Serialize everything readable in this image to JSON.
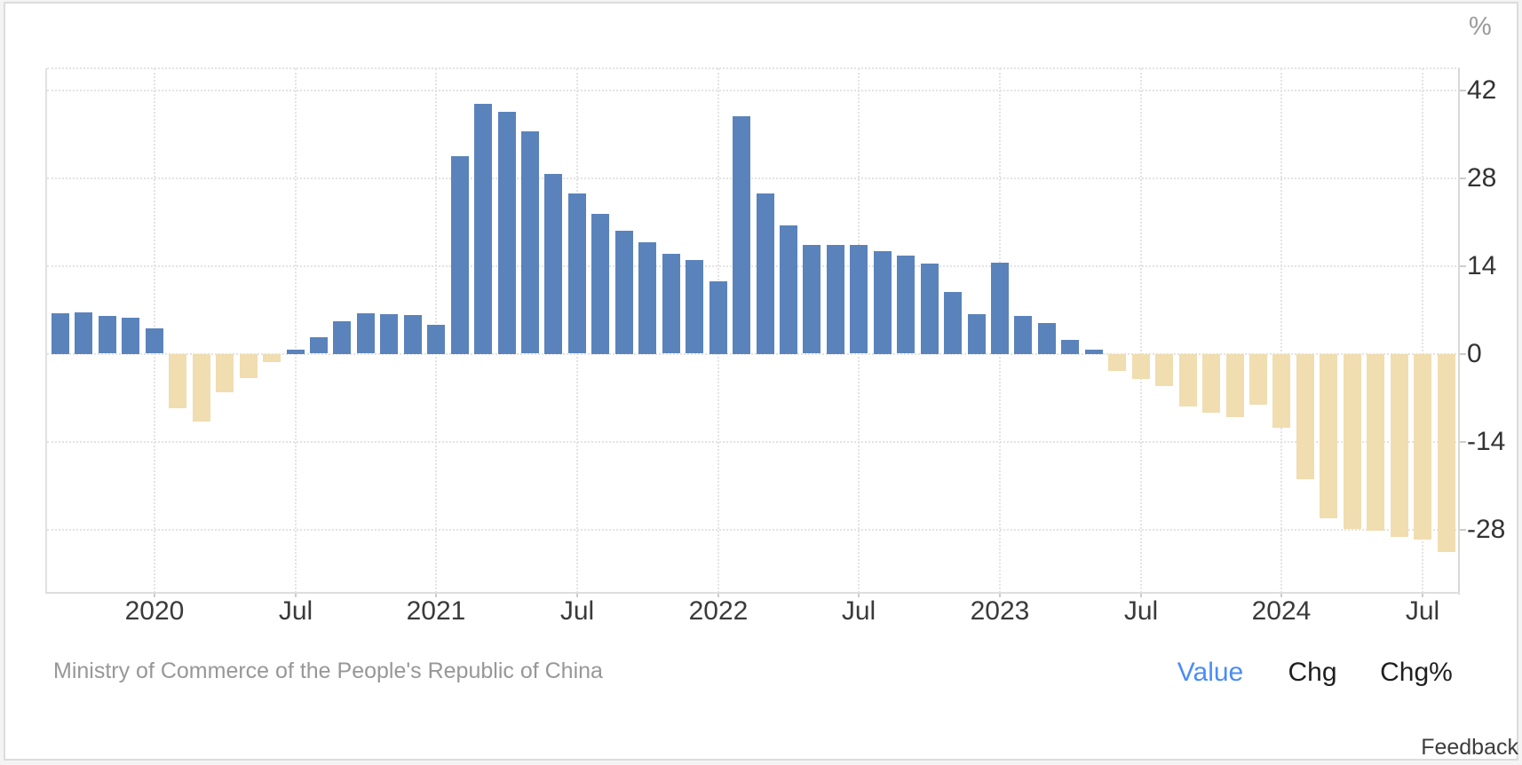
{
  "ui": {
    "unit_label": "%",
    "source": "Ministry of Commerce of the People's Republic of China",
    "toolbar": {
      "value": "Value",
      "chg": "Chg",
      "chg_pct": "Chg%"
    },
    "feedback": "Feedback",
    "colors": {
      "positive_bar": "#5a83bb",
      "negative_bar": "#f0ddb0",
      "active_tab_text": "#4a8cf7",
      "gridline": "#e3e3e3"
    }
  },
  "chart_data": {
    "type": "bar",
    "title": "",
    "ylabel": "%",
    "grid": "dotted",
    "legend": "none",
    "ylim": [
      -38.1,
      45.5
    ],
    "y_ticks": [
      42,
      28,
      14,
      0,
      -14,
      -28
    ],
    "x_tick_labels": [
      "2020",
      "Jul",
      "2021",
      "Jul",
      "2022",
      "Jul",
      "2023",
      "Jul",
      "2024",
      "Jul"
    ],
    "x_tick_bar_indices": [
      4,
      10,
      16,
      22,
      28,
      34,
      40,
      46,
      52,
      58
    ],
    "bar_colors": {
      "positive": "#5a83bb",
      "negative": "#f0ddb0"
    },
    "source": "Ministry of Commerce of the People's Republic of China",
    "x": [
      "Sep 2019",
      "Oct 2019",
      "Nov 2019",
      "Dec 2019",
      "Jan 2020",
      "Feb 2020",
      "Mar 2020",
      "Apr 2020",
      "May 2020",
      "Jun 2020",
      "Jul 2020",
      "Aug 2020",
      "Sep 2020",
      "Oct 2020",
      "Nov 2020",
      "Dec 2020",
      "Jan 2021",
      "Feb 2021",
      "Mar 2021",
      "Apr 2021",
      "May 2021",
      "Jun 2021",
      "Jul 2021",
      "Aug 2021",
      "Sep 2021",
      "Oct 2021",
      "Nov 2021",
      "Dec 2021",
      "Jan 2022",
      "Feb 2022",
      "Mar 2022",
      "Apr 2022",
      "May 2022",
      "Jun 2022",
      "Jul 2022",
      "Aug 2022",
      "Sep 2022",
      "Oct 2022",
      "Nov 2022",
      "Dec 2022",
      "Jan 2023",
      "Feb 2023",
      "Mar 2023",
      "Apr 2023",
      "May 2023",
      "Jun 2023",
      "Jul 2023",
      "Aug 2023",
      "Sep 2023",
      "Oct 2023",
      "Nov 2023",
      "Dec 2023",
      "Jan 2024",
      "Feb 2024",
      "Mar 2024",
      "Apr 2024",
      "May 2024",
      "Jun 2024",
      "Jul 2024",
      "Aug 2024"
    ],
    "values": [
      6.5,
      6.6,
      6.0,
      5.8,
      4.0,
      -8.6,
      -10.8,
      -6.1,
      -3.8,
      -1.3,
      0.5,
      2.6,
      5.2,
      6.4,
      6.3,
      6.2,
      4.6,
      31.5,
      39.9,
      38.6,
      35.4,
      28.7,
      25.5,
      22.3,
      19.6,
      17.8,
      15.9,
      14.9,
      11.6,
      37.9,
      25.6,
      20.5,
      17.3,
      17.4,
      17.3,
      16.4,
      15.6,
      14.4,
      9.9,
      6.3,
      14.5,
      6.1,
      4.9,
      2.2,
      0.1,
      -2.7,
      -4.0,
      -5.1,
      -8.4,
      -9.4,
      -10.0,
      -8.0,
      -11.7,
      -19.9,
      -26.1,
      -27.9,
      -28.2,
      -29.1,
      -29.6,
      -31.5
    ]
  }
}
